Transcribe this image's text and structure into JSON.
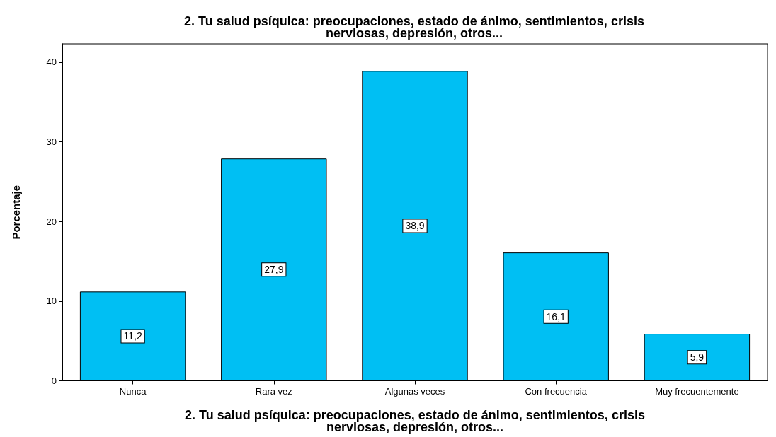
{
  "chart_data": {
    "type": "bar",
    "title": "2. Tu salud psíquica: preocupaciones, estado de ánimo, sentimientos, crisis\nnerviosas, depresión, otros...",
    "xlabel": "2. Tu salud psíquica: preocupaciones, estado de ánimo, sentimientos, crisis\nnerviosas, depresión, otros...",
    "ylabel": "Porcentaje",
    "categories": [
      "Nunca",
      "Rara vez",
      "Algunas veces",
      "Con frecuencia",
      "Muy frecuentemente"
    ],
    "values": [
      11.2,
      27.9,
      38.9,
      16.1,
      5.9
    ],
    "value_labels": [
      "11,2",
      "27,9",
      "38,9",
      "16,1",
      "5,9"
    ],
    "color": "#00bff3",
    "ylim": [
      0,
      42.3
    ],
    "yticks": [
      0,
      10,
      20,
      30,
      40
    ],
    "grid": false
  }
}
